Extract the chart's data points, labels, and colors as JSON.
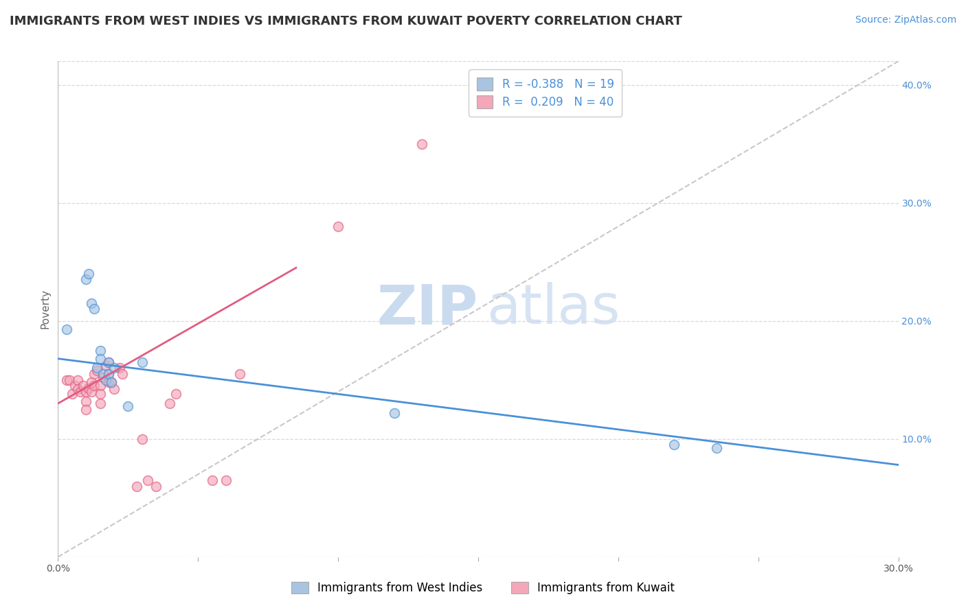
{
  "title": "IMMIGRANTS FROM WEST INDIES VS IMMIGRANTS FROM KUWAIT POVERTY CORRELATION CHART",
  "source_text": "Source: ZipAtlas.com",
  "ylabel": "Poverty",
  "xlim": [
    0.0,
    0.3
  ],
  "ylim": [
    0.0,
    0.42
  ],
  "x_ticks": [
    0.0,
    0.05,
    0.1,
    0.15,
    0.2,
    0.25,
    0.3
  ],
  "y_ticks_right": [
    0.0,
    0.1,
    0.2,
    0.3,
    0.4
  ],
  "y_tick_labels_right": [
    "",
    "10.0%",
    "20.0%",
    "30.0%",
    "40.0%"
  ],
  "color_blue": "#a8c4e0",
  "color_pink": "#f4a7b9",
  "line_blue": "#4a90d9",
  "line_pink": "#e05c80",
  "line_gray": "#c8c8c8",
  "legend_R1": "-0.388",
  "legend_N1": "19",
  "legend_R2": "0.209",
  "legend_N2": "40",
  "watermark_zip": "ZIP",
  "watermark_atlas": "atlas",
  "legend_label1": "Immigrants from West Indies",
  "legend_label2": "Immigrants from Kuwait",
  "blue_scatter_x": [
    0.003,
    0.01,
    0.011,
    0.012,
    0.013,
    0.014,
    0.015,
    0.015,
    0.016,
    0.017,
    0.018,
    0.018,
    0.019,
    0.02,
    0.025,
    0.03,
    0.12,
    0.22,
    0.235
  ],
  "blue_scatter_y": [
    0.193,
    0.235,
    0.24,
    0.215,
    0.21,
    0.16,
    0.175,
    0.168,
    0.155,
    0.15,
    0.165,
    0.155,
    0.148,
    0.16,
    0.128,
    0.165,
    0.122,
    0.095,
    0.092
  ],
  "pink_scatter_x": [
    0.003,
    0.004,
    0.005,
    0.006,
    0.007,
    0.007,
    0.008,
    0.009,
    0.01,
    0.01,
    0.01,
    0.011,
    0.012,
    0.012,
    0.013,
    0.013,
    0.014,
    0.015,
    0.015,
    0.015,
    0.016,
    0.017,
    0.018,
    0.018,
    0.018,
    0.019,
    0.02,
    0.022,
    0.023,
    0.028,
    0.03,
    0.032,
    0.035,
    0.055,
    0.06,
    0.065,
    0.1,
    0.13,
    0.04,
    0.042
  ],
  "pink_scatter_y": [
    0.15,
    0.15,
    0.138,
    0.145,
    0.15,
    0.142,
    0.14,
    0.145,
    0.14,
    0.132,
    0.125,
    0.143,
    0.148,
    0.14,
    0.155,
    0.145,
    0.158,
    0.145,
    0.138,
    0.13,
    0.152,
    0.162,
    0.165,
    0.155,
    0.148,
    0.148,
    0.142,
    0.16,
    0.155,
    0.06,
    0.1,
    0.065,
    0.06,
    0.065,
    0.065,
    0.155,
    0.28,
    0.35,
    0.13,
    0.138
  ],
  "blue_line_x": [
    0.0,
    0.3
  ],
  "blue_line_y": [
    0.168,
    0.078
  ],
  "pink_line_x": [
    0.0,
    0.085
  ],
  "pink_line_y": [
    0.13,
    0.245
  ],
  "gray_line_x": [
    0.0,
    0.3
  ],
  "gray_line_y": [
    0.0,
    0.42
  ],
  "title_fontsize": 13,
  "source_fontsize": 10,
  "axis_label_fontsize": 11,
  "tick_fontsize": 10,
  "legend_fontsize": 12,
  "marker_size": 100,
  "marker_alpha": 0.65,
  "background_color": "#ffffff",
  "plot_bg_color": "#ffffff"
}
